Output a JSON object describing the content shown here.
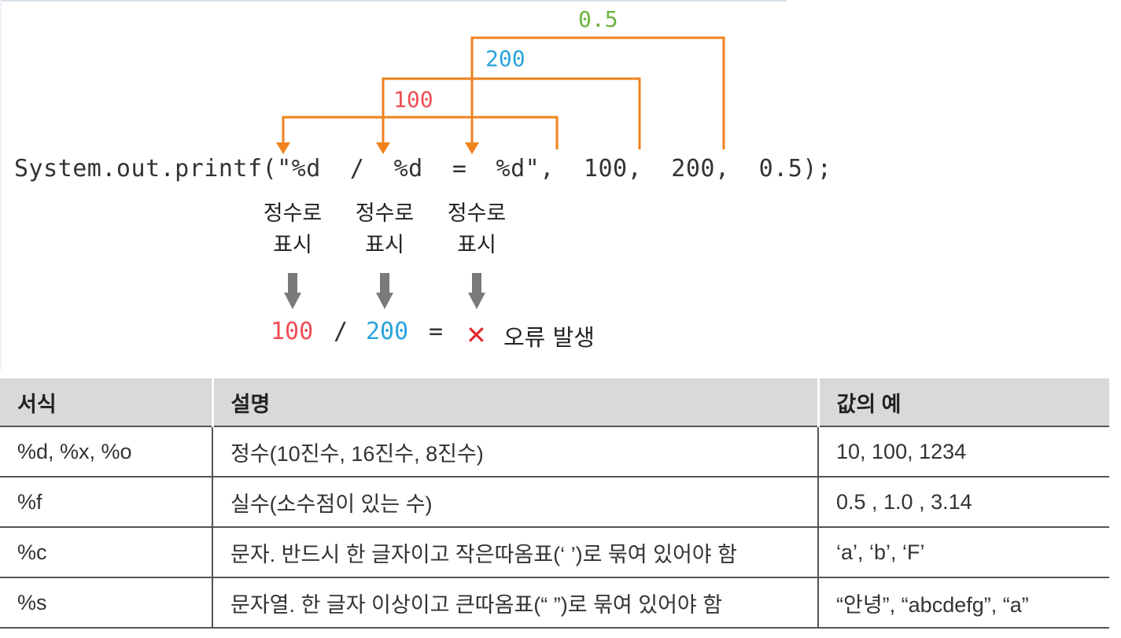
{
  "diagram": {
    "code_line": "System.out.printf(\"%d  /  %d  =  %d\",  100,  200,  0.5);",
    "arg_labels": [
      "100",
      "200",
      "0.5"
    ],
    "specifier_labels": [
      "정수로\n표시",
      "정수로\n표시",
      "정수로\n표시"
    ],
    "result": {
      "value1": "100",
      "op": "/",
      "value2": "200",
      "equals": "=",
      "error_mark": "✕",
      "error_text": "오류 발생"
    },
    "colors": {
      "arrow": "#f0821e",
      "value_100": "#ef4d54",
      "value_200": "#2aa3dc",
      "value_05": "#6bb43f",
      "error": "#e4252b",
      "down_arrow": "#7a7a7a"
    }
  },
  "table": {
    "headers": [
      "서식",
      "설명",
      "값의 예"
    ],
    "rows": [
      [
        "%d, %x, %o",
        "정수(10진수, 16진수, 8진수)",
        "10, 100, 1234"
      ],
      [
        "%f",
        "실수(소수점이 있는 수)",
        "0.5 , 1.0 , 3.14"
      ],
      [
        "%c",
        "문자. 반드시 한 글자이고 작은따옴표(‘ ’)로 묶여 있어야 함",
        "‘a’, ‘b’, ‘F’"
      ],
      [
        "%s",
        "문자열. 한 글자 이상이고 큰따옴표(“ ”)로 묶여 있어야 함",
        "“안녕”, “abcdefg”, “a”"
      ]
    ]
  }
}
